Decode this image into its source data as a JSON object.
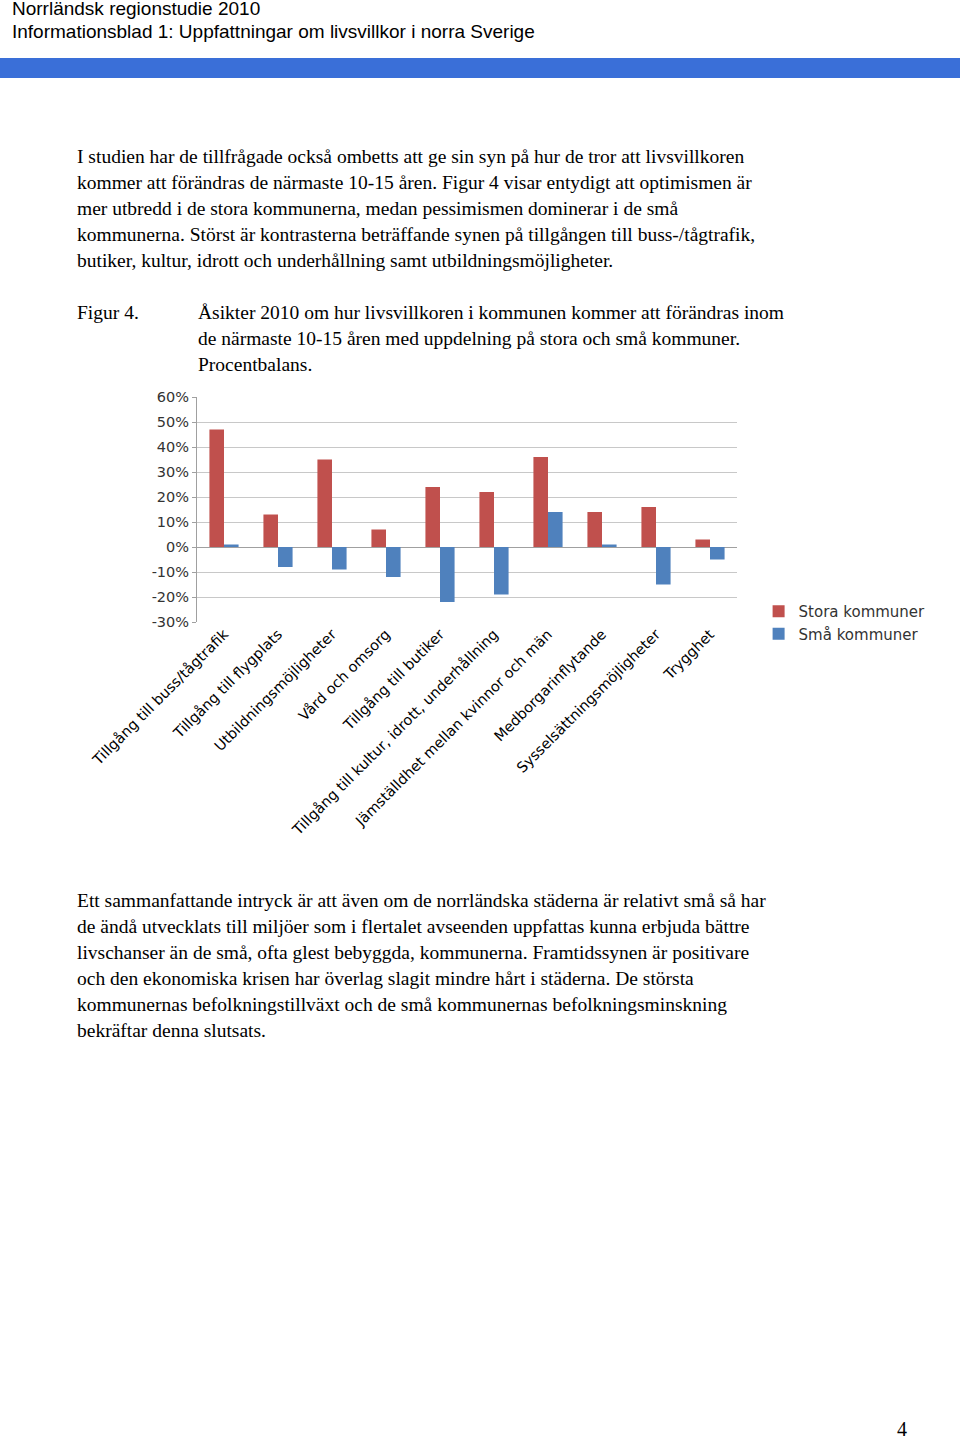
{
  "header": {
    "title": "Norrländsk regionstudie 2010",
    "subtitle": "Informationsblad 1: Uppfattningar om livsvillkor i norra Sverige"
  },
  "intro": [
    "I studien har de tillfrågade också ombetts att ge sin syn på hur de tror att livsvillkoren",
    "kommer att förändras de närmaste 10-15 åren. Figur 4 visar entydigt att optimismen är",
    "mer utbredd i de stora kommunerna, medan pessimismen dominerar i de små",
    "kommunerna. Störst är kontrasterna beträffande synen på tillgången till buss-/tågtrafik,",
    "butiker, kultur, idrott och underhållning samt utbildningsmöjligheter."
  ],
  "figure": {
    "label": "Figur 4.",
    "caption": [
      "Åsikter 2010 om hur livsvillkoren i kommunen kommer att förändras inom",
      "de närmaste 10-15 åren med uppdelning på stora och små kommuner.",
      "Procentbalans."
    ]
  },
  "chart_data": {
    "type": "bar",
    "categories": [
      "Tillgång till buss/tågtrafik",
      "Tillgång till flygplats",
      "Utbildningsmöjligheter",
      "Vård och omsorg",
      "Tillgång till butiker",
      "Tillgång till kultur, idrott, underhållning",
      "Jämställdhet mellan kvinnor och män",
      "Medborgarinflytande",
      "Sysselsättningsmöjligheter",
      "Trygghet"
    ],
    "series": [
      {
        "name": "Stora kommuner",
        "color": "#c0504d",
        "values": [
          47,
          13,
          35,
          7,
          24,
          22,
          36,
          14,
          16,
          3
        ]
      },
      {
        "name": "Små kommuner",
        "color": "#4f81bd",
        "values": [
          1,
          -8,
          -9,
          -12,
          -22,
          -19,
          14,
          1,
          -15,
          -5
        ]
      }
    ],
    "ylim": [
      -30,
      60
    ],
    "yticks": [
      {
        "value": -30,
        "label": "-30%"
      },
      {
        "value": -20,
        "label": "-20%"
      },
      {
        "value": -10,
        "label": "-10%"
      },
      {
        "value": 0,
        "label": "0%"
      },
      {
        "value": 10,
        "label": "10%"
      },
      {
        "value": 20,
        "label": "20%"
      },
      {
        "value": 30,
        "label": "30%"
      },
      {
        "value": 40,
        "label": "40%"
      },
      {
        "value": 50,
        "label": "50%"
      },
      {
        "value": 60,
        "label": "60%"
      }
    ],
    "grid": true,
    "legend": "right"
  },
  "summary": [
    "Ett sammanfattande intryck är att även om de norrländska städerna är relativt små så har",
    "de ändå utvecklats till miljöer som i flertalet avseenden uppfattas kunna erbjuda bättre",
    "livschanser än de små, ofta glest bebyggda, kommunerna. Framtidssynen är positivare",
    "och den ekonomiska krisen har överlag slagit mindre hårt i städerna.  De största",
    "kommunernas befolkningstillväxt och de små kommunernas befolkningsminskning",
    "bekräftar denna slutsats."
  ],
  "page_number": "4"
}
